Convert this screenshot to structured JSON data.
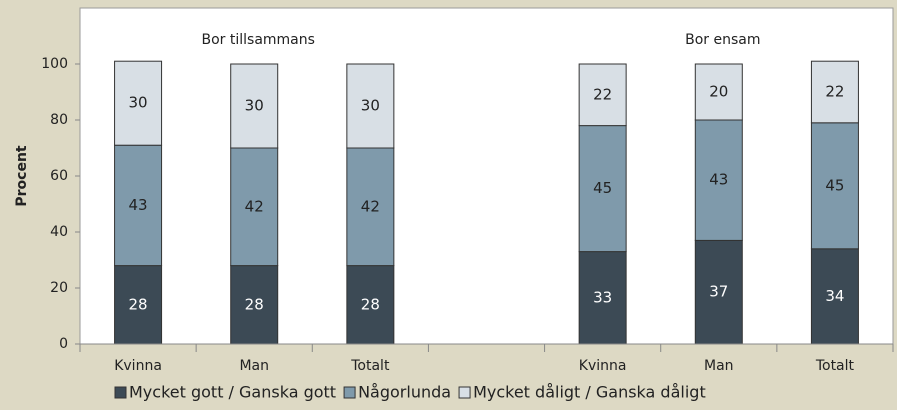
{
  "chart_data": {
    "type": "bar",
    "stacked": true,
    "y_label": "Procent",
    "annotations": [
      "Bor tillsammans",
      "Bor ensam"
    ],
    "categories": [
      "Kvinna",
      "Man",
      "Totalt",
      null,
      "Kvinna",
      "Man",
      "Totalt"
    ],
    "series": [
      {
        "name": "Mycket gott / Ganska gott",
        "color": "#3c4a55",
        "values": [
          28,
          28,
          28,
          null,
          33,
          37,
          34
        ]
      },
      {
        "name": "Någorlunda",
        "color": "#7f9aab",
        "values": [
          43,
          42,
          42,
          null,
          45,
          43,
          45
        ]
      },
      {
        "name": "Mycket dåligt / Ganska dåligt",
        "color": "#d8dfe5",
        "values": [
          30,
          30,
          30,
          null,
          22,
          20,
          22
        ]
      }
    ],
    "ylim": [
      0,
      120
    ],
    "yticks": [
      0,
      20,
      40,
      60,
      80,
      100
    ]
  }
}
